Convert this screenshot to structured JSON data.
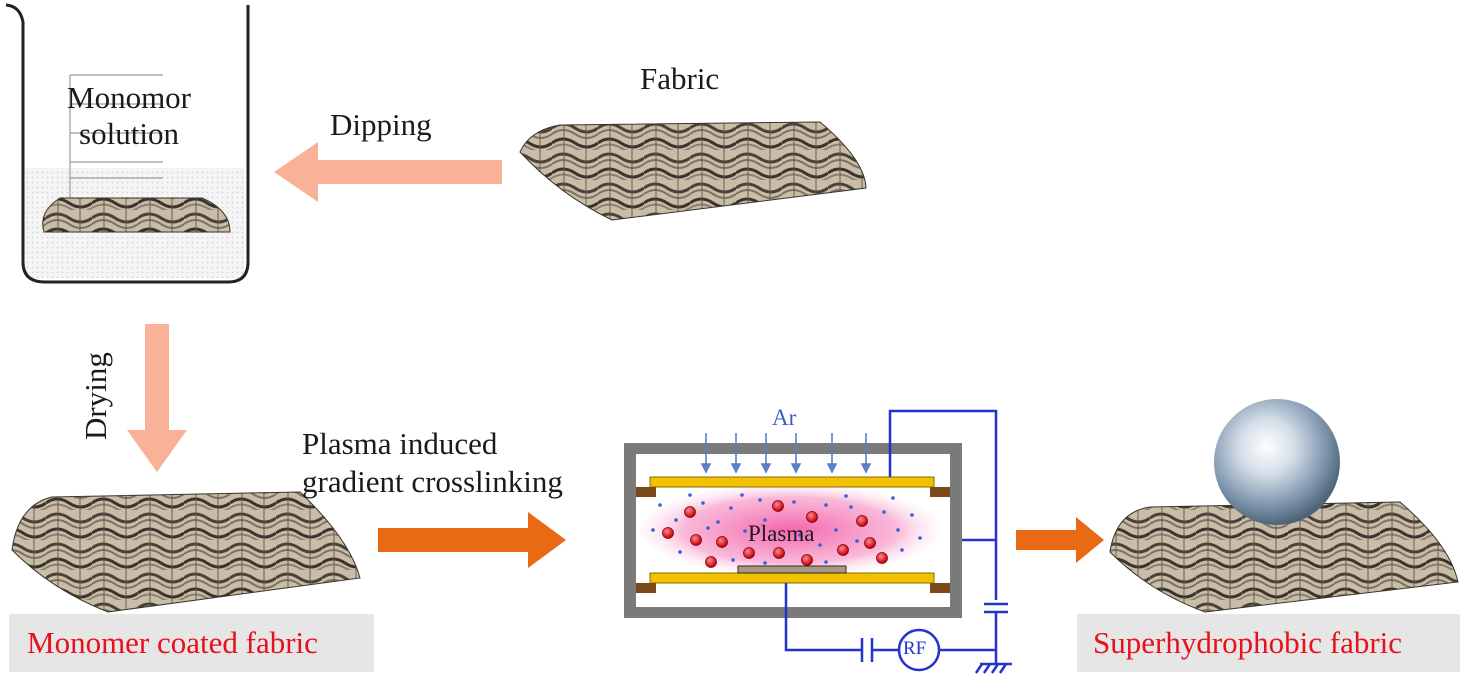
{
  "beaker": {
    "line1": "Monomor",
    "line2": "solution"
  },
  "steps": {
    "dipping": "Dipping",
    "drying": "Drying",
    "plasma_line1": "Plasma induced",
    "plasma_line2": "gradient crosslinking"
  },
  "labels": {
    "fabric": "Fabric",
    "coated": "Monomer coated fabric",
    "superhydrophobic": "Superhydrophobic fabric"
  },
  "reactor": {
    "gas": "Ar",
    "plasma": "Plasma",
    "rf": "RF"
  },
  "colors": {
    "arrow_light": "#f9b198",
    "arrow_dark": "#e86a14",
    "label_red": "#e8101c",
    "circuit_blue": "#2433cc",
    "electrode_yellow": "#f2c200"
  }
}
